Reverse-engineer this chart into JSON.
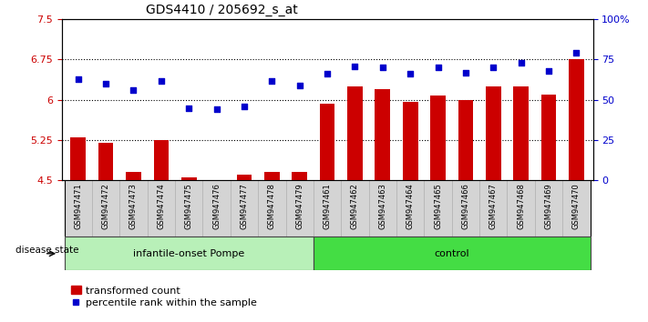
{
  "title": "GDS4410 / 205692_s_at",
  "samples": [
    "GSM947471",
    "GSM947472",
    "GSM947473",
    "GSM947474",
    "GSM947475",
    "GSM947476",
    "GSM947477",
    "GSM947478",
    "GSM947479",
    "GSM947461",
    "GSM947462",
    "GSM947463",
    "GSM947464",
    "GSM947465",
    "GSM947466",
    "GSM947467",
    "GSM947468",
    "GSM947469",
    "GSM947470"
  ],
  "bar_values": [
    5.3,
    5.2,
    4.65,
    5.25,
    4.55,
    4.5,
    4.6,
    4.65,
    4.65,
    5.92,
    6.25,
    6.2,
    5.97,
    6.08,
    6.0,
    6.25,
    6.25,
    6.1,
    6.75
  ],
  "dot_values": [
    63,
    60,
    56,
    62,
    45,
    44,
    46,
    62,
    59,
    66,
    71,
    70,
    66,
    70,
    67,
    70,
    73,
    68,
    79
  ],
  "groups": [
    {
      "label": "infantile-onset Pompe",
      "start": 0,
      "end": 8
    },
    {
      "label": "control",
      "start": 9,
      "end": 18
    }
  ],
  "group_colors": [
    "#b8f0b8",
    "#44dd44"
  ],
  "ylim_left": [
    4.5,
    7.5
  ],
  "ylim_right": [
    0,
    100
  ],
  "yticks_left": [
    4.5,
    5.25,
    6.0,
    6.75,
    7.5
  ],
  "yticks_right": [
    0,
    25,
    50,
    75,
    100
  ],
  "ytick_labels_left": [
    "4.5",
    "5.25",
    "6",
    "6.75",
    "7.5"
  ],
  "ytick_labels_right": [
    "0",
    "25",
    "50",
    "75",
    "100%"
  ],
  "hlines": [
    5.25,
    6.0,
    6.75
  ],
  "bar_color": "#cc0000",
  "dot_color": "#0000cc",
  "disease_state_label": "disease state",
  "legend_bar_label": "transformed count",
  "legend_dot_label": "percentile rank within the sample",
  "bar_width": 0.55,
  "title_fontsize": 10,
  "tick_label_fontsize": 6,
  "axis_label_fontsize": 8,
  "legend_fontsize": 8
}
